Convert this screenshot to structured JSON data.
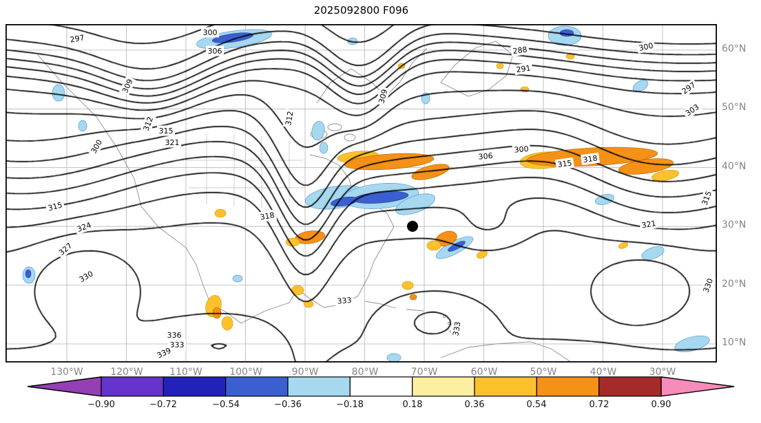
{
  "title": "2025092800 F096",
  "axes": {
    "x_ticks": [
      "130°W",
      "120°W",
      "110°W",
      "100°W",
      "90°W",
      "80°W",
      "70°W",
      "60°W",
      "50°W",
      "40°W",
      "30°W"
    ],
    "y_ticks": [
      "60°N",
      "50°N",
      "40°N",
      "30°N",
      "20°N",
      "10°N"
    ]
  },
  "colorbar": {
    "tick_labels": [
      "−0.90",
      "−0.72",
      "−0.54",
      "−0.36",
      "−0.18",
      "0.18",
      "0.36",
      "0.54",
      "0.72",
      "0.90"
    ],
    "segment_colors": [
      "#6633cc",
      "#2222bb",
      "#3a5fd0",
      "#a6d8f0",
      "#ffffff",
      "#fdeea2",
      "#fdc12c",
      "#f59116",
      "#a52a2a"
    ],
    "arrow_left_color": "#9440b4",
    "arrow_right_color": "#f78cba"
  },
  "contour_labels": [
    "297",
    "300",
    "306",
    "309",
    "288",
    "291",
    "300",
    "297",
    "303",
    "309",
    "312",
    "315",
    "321",
    "312",
    "306",
    "300",
    "315",
    "318",
    "300",
    "315",
    "324",
    "330",
    "318",
    "333",
    "333",
    "336",
    "333",
    "339",
    "321",
    "315",
    "330",
    "327"
  ],
  "chart_data": {
    "type": "contour_map",
    "title": "2025092800 F096",
    "contour_field": {
      "levels": [
        288,
        291,
        294,
        297,
        300,
        303,
        306,
        309,
        312,
        315,
        318,
        321,
        324,
        327,
        330,
        333,
        336,
        339
      ],
      "interval": 3,
      "labeled_values_visible": [
        288,
        291,
        297,
        300,
        303,
        306,
        309,
        312,
        315,
        318,
        321,
        324,
        327,
        330,
        333,
        336,
        339
      ]
    },
    "shading_field": {
      "boundaries": [
        -0.9,
        -0.72,
        -0.54,
        -0.36,
        -0.18,
        0.18,
        0.36,
        0.54,
        0.72,
        0.9
      ],
      "extend": "both"
    },
    "x_tick_lons_deg_w": [
      130,
      120,
      110,
      100,
      90,
      80,
      70,
      60,
      50,
      40,
      30
    ],
    "y_tick_lats_deg_n": [
      10,
      20,
      30,
      40,
      50,
      60
    ],
    "marker": {
      "lon_deg_w": 72,
      "lat_deg_n": 30
    },
    "grid": true,
    "legend_position": "bottom-colorbar"
  }
}
